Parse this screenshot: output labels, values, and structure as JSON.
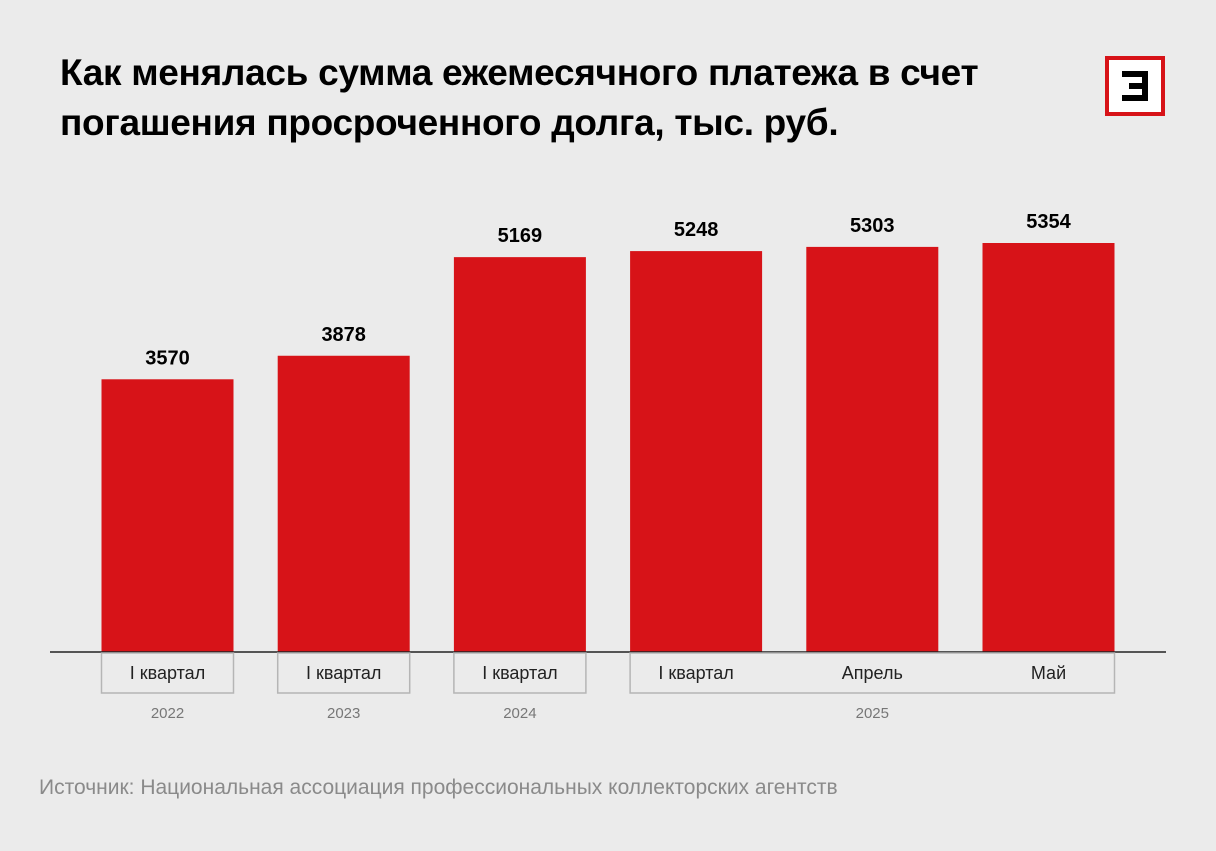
{
  "title": "Как менялась сумма ежемесячного платежа в счет погашения просроченного долга, тыс. руб.",
  "source": "Источник: Национальная ассоциация профессиональных коллекторских агентств",
  "logo": {
    "icon": "e-logo-icon",
    "color": "#d71318"
  },
  "colors": {
    "bar": "#d71318",
    "baseline": "#222222",
    "label_box_border": "#b5b5b5",
    "year_text": "#777777"
  },
  "chart_data": {
    "type": "bar",
    "title": "Как менялась сумма ежемесячного платежа в счет погашения просроченного долга, тыс. руб.",
    "categories": [
      "I квартал",
      "I квартал",
      "I квартал",
      "I квартал",
      "Апрель",
      "Май"
    ],
    "values": [
      3570,
      3878,
      5169,
      5248,
      5303,
      5354
    ],
    "years": [
      {
        "label": "2022",
        "from": 0,
        "to": 0
      },
      {
        "label": "2023",
        "from": 1,
        "to": 1
      },
      {
        "label": "2024",
        "from": 2,
        "to": 2
      },
      {
        "label": "2025",
        "from": 3,
        "to": 5
      }
    ],
    "data_labels": [
      "3570",
      "3878",
      "5169",
      "5248",
      "5303",
      "5354"
    ],
    "ylim": [
      0,
      5354
    ],
    "grid": false,
    "legend": "none",
    "xlabel": "",
    "ylabel": ""
  }
}
